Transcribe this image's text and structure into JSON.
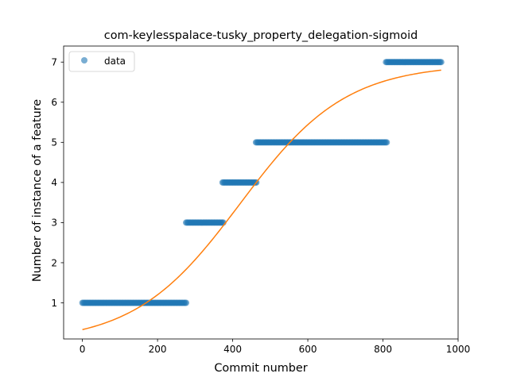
{
  "chart_data": {
    "type": "scatter",
    "title": "com-keylesspalace-tusky_property_delegation-sigmoid",
    "xlabel": "Commit number",
    "ylabel": "Number of instance of a feature",
    "xlim": [
      -50,
      1000
    ],
    "ylim": [
      0.1,
      7.4
    ],
    "x_ticks": [
      0,
      200,
      400,
      600,
      800,
      1000
    ],
    "y_ticks": [
      1,
      2,
      3,
      4,
      5,
      6,
      7
    ],
    "grid": false,
    "legend": {
      "placement": "top-left",
      "entries": [
        "data"
      ]
    },
    "series": [
      {
        "name": "data",
        "kind": "points",
        "color": "#1f77b4",
        "segments": [
          {
            "x_start": 0,
            "x_end": 278,
            "y": 1
          },
          {
            "x_start": 276,
            "x_end": 375,
            "y": 3
          },
          {
            "x_start": 373,
            "x_end": 463,
            "y": 4
          },
          {
            "x_start": 462,
            "x_end": 810,
            "y": 5
          },
          {
            "x_start": 808,
            "x_end": 955,
            "y": 7
          }
        ]
      },
      {
        "kind": "line",
        "color": "#ff7f0e",
        "sigmoid": {
          "L": 6.95,
          "k": 0.00712,
          "x0": 420,
          "b": 0.0
        },
        "x_range": [
          0,
          955
        ]
      }
    ]
  }
}
